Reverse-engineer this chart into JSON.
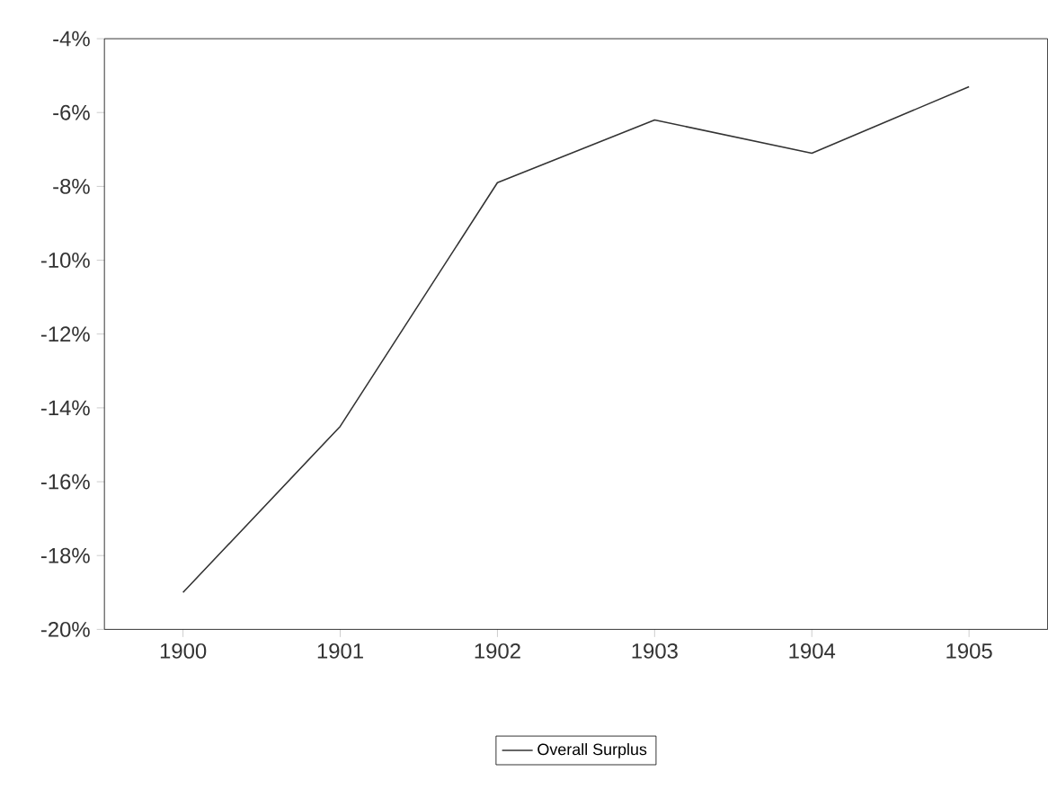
{
  "chart_data": {
    "type": "line",
    "categories": [
      "1900",
      "1901",
      "1902",
      "1903",
      "1904",
      "1905"
    ],
    "series": [
      {
        "name": "Overall Surplus",
        "color": "#333333",
        "values": [
          -19.0,
          -14.5,
          -7.9,
          -6.2,
          -7.1,
          -5.3
        ]
      }
    ],
    "ylim": [
      -20,
      -4
    ],
    "yticks": [
      {
        "value": -4,
        "label": "-4%"
      },
      {
        "value": -6,
        "label": "-6%"
      },
      {
        "value": -8,
        "label": "-8%"
      },
      {
        "value": -10,
        "label": "-10%"
      },
      {
        "value": -12,
        "label": "-12%"
      },
      {
        "value": -14,
        "label": "-14%"
      },
      {
        "value": -16,
        "label": "-16%"
      },
      {
        "value": -18,
        "label": "-18%"
      },
      {
        "value": -20,
        "label": "-20%"
      }
    ],
    "legend": "bottom",
    "grid": false,
    "marker": "none",
    "line_style": "solid"
  }
}
